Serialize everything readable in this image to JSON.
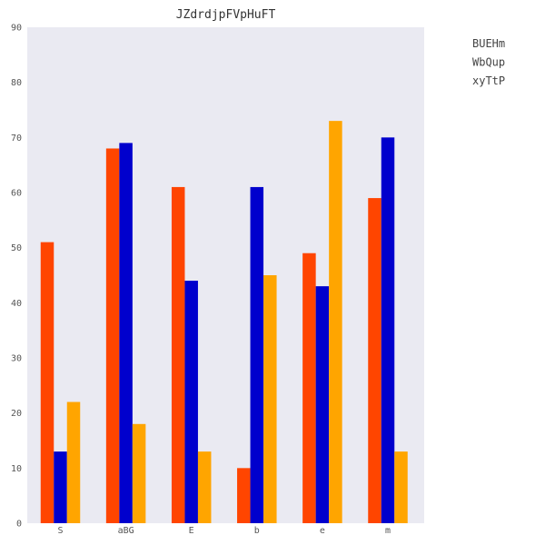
{
  "chart_data": {
    "type": "bar",
    "title": "JZdrdjpFVpHuFT",
    "xlabel": "",
    "ylabel": "",
    "categories": [
      "S",
      "aBG",
      "E",
      "b",
      "e",
      "m"
    ],
    "series": [
      {
        "name": "BUEHm",
        "values": [
          51,
          68,
          61,
          10,
          49,
          59
        ],
        "color": "#ff4500"
      },
      {
        "name": "WbQup",
        "values": [
          13,
          69,
          44,
          61,
          43,
          70
        ],
        "color": "#0000cd"
      },
      {
        "name": "xyTtP",
        "values": [
          22,
          18,
          13,
          45,
          73,
          13
        ],
        "color": "#ffa500"
      }
    ],
    "ylim": [
      0,
      90
    ],
    "yticks": [
      0,
      10,
      20,
      30,
      40,
      50,
      60,
      70,
      80,
      90
    ],
    "grid": false,
    "legend_position": "top-right",
    "background_color": "#eaeaf2"
  }
}
